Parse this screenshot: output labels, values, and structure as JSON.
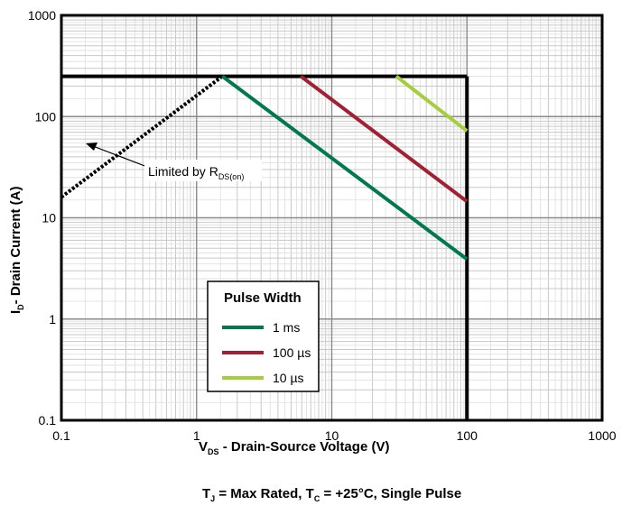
{
  "chart_data": {
    "type": "line",
    "x_scale": "log",
    "y_scale": "log",
    "xlim": [
      0.1,
      1000
    ],
    "ylim": [
      0.1,
      1000
    ],
    "grid": true,
    "legend_position": "center-left",
    "x_ticks": [
      "0.1",
      "1",
      "10",
      "100",
      "1000"
    ],
    "y_ticks": [
      "0.1",
      "1",
      "10",
      "100",
      "1000"
    ],
    "xlabel": {
      "main": "V",
      "sub": "DS",
      "rest": "  - Drain-Source Voltage (V)"
    },
    "ylabel": {
      "main": "I",
      "sub": "D",
      "rest": "- Drain Current (A)"
    },
    "caption": {
      "parts": [
        {
          "t": "T"
        },
        {
          "s": "J"
        },
        {
          "t": " = Max Rated, T"
        },
        {
          "s": "C"
        },
        {
          "t": " = +25°C, Single Pulse"
        }
      ]
    },
    "legend_title": "Pulse Width",
    "series": [
      {
        "name": "1 ms",
        "color": "#007a4d",
        "x": [
          1.55,
          100
        ],
        "y": [
          250,
          3.9
        ]
      },
      {
        "name": "100 µs",
        "color": "#a31f34",
        "x": [
          5.9,
          100
        ],
        "y": [
          250,
          14.5
        ]
      },
      {
        "name": "10 µs",
        "color": "#a6ce39",
        "x": [
          30,
          100
        ],
        "y": [
          250,
          72
        ]
      }
    ],
    "limit_lines": [
      {
        "kind": "rds_on",
        "style": "dotted",
        "color": "#000000",
        "x": [
          0.1,
          1.55
        ],
        "y": [
          16,
          250
        ]
      },
      {
        "kind": "current_limit",
        "style": "solid",
        "color": "#000000",
        "x": [
          0.1,
          100
        ],
        "y": [
          250,
          250
        ]
      },
      {
        "kind": "voltage_limit",
        "style": "solid",
        "color": "#000000",
        "x": [
          100,
          100
        ],
        "y": [
          250,
          0.1
        ]
      }
    ],
    "annotation": {
      "text": "Limited by R",
      "sub": "DS(on)"
    }
  }
}
